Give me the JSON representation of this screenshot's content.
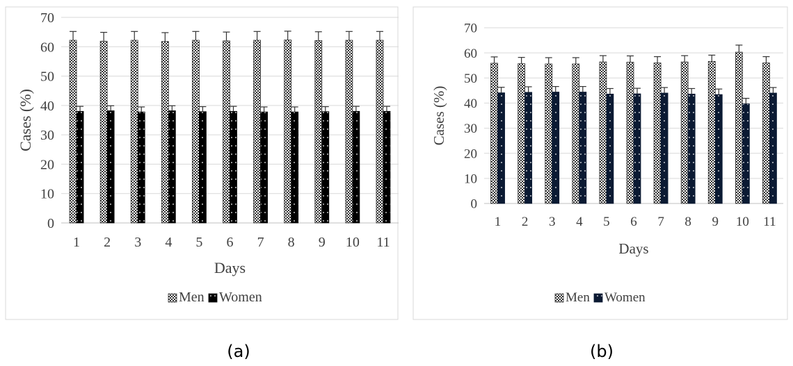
{
  "chart_data": [
    {
      "type": "bar",
      "panel_label": "(a)",
      "xlabel": "Days",
      "ylabel": "Cases (%)",
      "ylim": [
        0,
        70
      ],
      "yticks": [
        0,
        10,
        20,
        30,
        40,
        50,
        60,
        70
      ],
      "categories": [
        "1",
        "2",
        "3",
        "4",
        "5",
        "6",
        "7",
        "8",
        "9",
        "10",
        "11"
      ],
      "grid": true,
      "legend_position": "bottom",
      "series": [
        {
          "name": "Men",
          "pattern": "checker",
          "color": "#000000",
          "values": [
            62.2,
            61.9,
            62.2,
            61.8,
            62.2,
            62.0,
            62.2,
            62.3,
            62.1,
            62.2,
            62.2
          ],
          "error": [
            3,
            3,
            3,
            3,
            3,
            3,
            3,
            3,
            3,
            3,
            3
          ]
        },
        {
          "name": "Women",
          "pattern": "solid-dots",
          "color": "#000000",
          "values": [
            38.0,
            38.2,
            37.8,
            38.2,
            37.9,
            38.0,
            37.8,
            37.8,
            37.9,
            38.0,
            38.0
          ],
          "error": [
            1.7,
            1.7,
            1.7,
            1.7,
            1.7,
            1.7,
            1.7,
            1.7,
            1.7,
            1.7,
            1.7
          ]
        }
      ]
    },
    {
      "type": "bar",
      "panel_label": "(b)",
      "xlabel": "Days",
      "ylabel": "Cases (%)",
      "ylim": [
        0,
        70
      ],
      "yticks": [
        0,
        10,
        20,
        30,
        40,
        50,
        60,
        70
      ],
      "categories": [
        "1",
        "2",
        "3",
        "4",
        "5",
        "6",
        "7",
        "8",
        "9",
        "10",
        "11"
      ],
      "grid": true,
      "legend_position": "bottom",
      "series": [
        {
          "name": "Men",
          "pattern": "checker",
          "color": "#000000",
          "values": [
            55.9,
            55.7,
            55.6,
            55.6,
            56.4,
            56.3,
            56.0,
            56.4,
            56.6,
            60.3,
            56.0
          ],
          "error": [
            2.5,
            2.5,
            2.5,
            2.5,
            2.5,
            2.5,
            2.5,
            2.5,
            2.5,
            2.8,
            2.5
          ]
        },
        {
          "name": "Women",
          "pattern": "navy-dots",
          "color": "#0b1a33",
          "values": [
            44.1,
            44.3,
            44.4,
            44.4,
            43.6,
            43.7,
            44.0,
            43.6,
            43.4,
            39.7,
            44.0
          ],
          "error": [
            2.2,
            2.2,
            2.2,
            2.2,
            2.2,
            2.2,
            2.2,
            2.2,
            2.2,
            2.2,
            2.2
          ]
        }
      ]
    }
  ]
}
